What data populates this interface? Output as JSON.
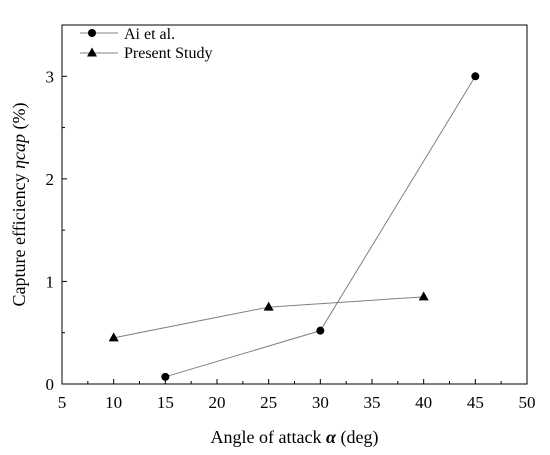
{
  "chart_data": {
    "type": "line",
    "xlabel": "Angle of attack",
    "xlabel_symbol": "α",
    "xlabel_unit": "(deg)",
    "ylabel": "Capture efficiency",
    "ylabel_symbol": "η",
    "ylabel_subscript": "cap",
    "ylabel_unit": "(%)",
    "xlim": [
      5,
      50
    ],
    "ylim": [
      0,
      3.5
    ],
    "x_ticks": [
      "5",
      "10",
      "15",
      "20",
      "25",
      "30",
      "35",
      "40",
      "45",
      "50"
    ],
    "y_ticks": [
      "0",
      "1",
      "2",
      "3"
    ],
    "grid": false,
    "legend_position": "top-left",
    "series": [
      {
        "name": "Ai et al.",
        "marker": "circle",
        "color": "#000000",
        "line_color": "#808080",
        "x": [
          15,
          30,
          45
        ],
        "y": [
          0.07,
          0.52,
          3.0
        ]
      },
      {
        "name": "Present Study",
        "marker": "triangle",
        "color": "#000000",
        "line_color": "#808080",
        "x": [
          10,
          25,
          40
        ],
        "y": [
          0.45,
          0.75,
          0.85
        ]
      }
    ]
  }
}
